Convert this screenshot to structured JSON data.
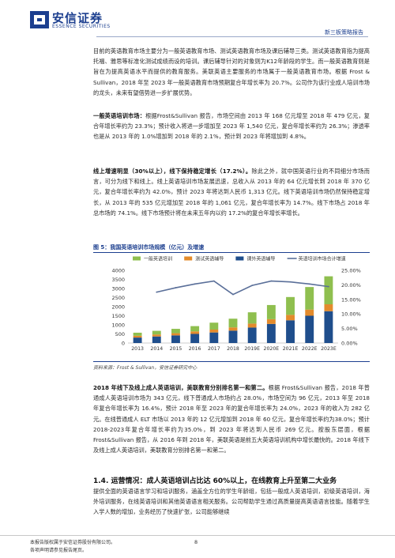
{
  "header": {
    "logo_cn": "安信证券",
    "logo_en": "ESSENCE SECURITIES",
    "report_type": "新三板策略报告",
    "colors": {
      "brand": "#1c3f8f",
      "accent": "#e38b2c"
    }
  },
  "paragraphs": {
    "p1": "目前的英语教育市场主要分为一般英语教育市场、测试英语教育市场及课后辅导三类。测试英语教育指为提高托福、雅思等标准化测试成绩而设的培训。课后辅导针对的对象则为K12年龄段的学生。而一般英语教育则是旨在为提高英语水平而提供的教育服务。美联英语主要服务的市场属于一般英语教育市场。根据 Frost & Sullivan，2018 年至 2023 年一般英语教育市场预期复合年增长率为 20.7%。公司作为该行业成人培训市场的龙头，未来有望借势进一步扩展优势。",
    "p2_lead": "一般英语培训市场：",
    "p2": "根据Frost&Sullivan 报告，市场空间由 2013 年 168 亿元增至 2018 年 479 亿元，复合年增长率约为 23.3%；预计收入将进一步增加至 2023 年 1,540 亿元，复合年增长率约为 26.3%；渗透率也是从 2013 年的 1.0%增加到 2018 年的 2.1%，预计到 2023 年将增加到 4.8%。",
    "p3_lead": "线上增速明显（30%以上），线下保持稳定增长（17.2%）。",
    "p3": "除此之外，就中国英语行业的不同细分市场而言，可分为线下和线上。线上英语培训市场发展迅速，总收入从 2013 年的 64 亿元增长到 2018 年 370 亿元，复合年增长率约为 42.0%，预计 2023 年将达到人民币 1,313 亿元。线下英语培训市场仍然保持稳定增长，从 2013 年的 535 亿元增加至 2018 年的 1,061 亿元，复合年增长率为 14.7%。线下市场占 2018 年总市场的 74.1%。线下市场预计将在未来五年内以约 17.2%的复合年增长率增长。",
    "p4_lead": "2018 年线下及线上成人英语培训，美联教育分别排名第一和第二。",
    "p4": "根据 Frost&Sullivan 报告，2018 年普通成人英语培训市场为 343 亿元，线下普通成人市场约占 28.0%，市场空间为 96 亿元，2013 年至 2018 年复合年增长率为 16.4%，预计 2018 年至 2023 年的复合年增长率为 24.0%，2023 年的收入为 282 亿元。在线普通成人 ELT 市场以 2013 年的 12 亿元增加到 2018 年 60 亿元，复合年增长率约为38.0%；预计2018-2023年复合年增长率约为35.0%，到 2023 年将达到人民币 269 亿元。按股东层面，根据 Frost&Sullivan 报告，从 2016 年到 2018 年，美联英语是前五大英语培训机构中增长最快的。2018 年线下及线上成人英语培训，美联教育分别排名第一和第二。",
    "p5": "提供全面的英语语言学习和培训服务，涵盖全方位的学生年龄组，包括一般成人英语培训，初级英语培训，海外培训服务，在线英语培训和其他英语语言相关服务。公司帮助学生通过高质量提高英语语言技能。随着学生入学人数的增加，业务经历了快速扩张，公司能够继续"
  },
  "section": {
    "title": "1.4. 运营情况：成人英语培训占比达 60%以上，在线教育上升至第二大业务"
  },
  "figure": {
    "caption": "图 5：我国英语培训市场规模（亿元）及增速",
    "source": "资料来源：Frost & Sullivan，安信证券研究中心"
  },
  "chart_data": {
    "type": "bar",
    "stacked": true,
    "categories": [
      "2013",
      "2014",
      "2015",
      "2016",
      "2017",
      "2018",
      "2019E",
      "2020E",
      "2021E",
      "2022E",
      "2023E"
    ],
    "series": [
      {
        "name": "课外英语辅导",
        "type": "bar",
        "color": "#1f4e8c",
        "values": [
          300,
          360,
          420,
          500,
          580,
          680,
          850,
          1050,
          1250,
          1500,
          1750
        ]
      },
      {
        "name": "测试英语辅导",
        "type": "bar",
        "color": "#e38b2c",
        "values": [
          100,
          110,
          120,
          140,
          160,
          180,
          220,
          260,
          300,
          340,
          380
        ]
      },
      {
        "name": "一般英语培训",
        "type": "bar",
        "color": "#8fbf4f",
        "values": [
          168,
          200,
          240,
          290,
          380,
          479,
          620,
          780,
          980,
          1240,
          1540
        ]
      },
      {
        "name": "英语培训市场合计增速",
        "type": "line",
        "color": "#5a6f99",
        "axis": "right",
        "values": [
          null,
          17.5,
          19.0,
          20.3,
          21.3,
          16.7,
          19.8,
          21.3,
          21.0,
          20.3,
          19.4
        ]
      }
    ],
    "ylim": [
      0,
      4000
    ],
    "yticks": [
      0,
      500,
      1000,
      1500,
      2000,
      2500,
      3000,
      3500,
      4000
    ],
    "y2lim": [
      0,
      25
    ],
    "y2ticks": [
      "0.00%",
      "5.00%",
      "10.00%",
      "15.00%",
      "20.00%",
      "25.00%"
    ],
    "legend": "top",
    "grid": false
  },
  "footer": {
    "line1": "本报告版权属于安信证券股份有限公司。",
    "line2": "各项声明请参见报告尾页。",
    "page": "8"
  }
}
